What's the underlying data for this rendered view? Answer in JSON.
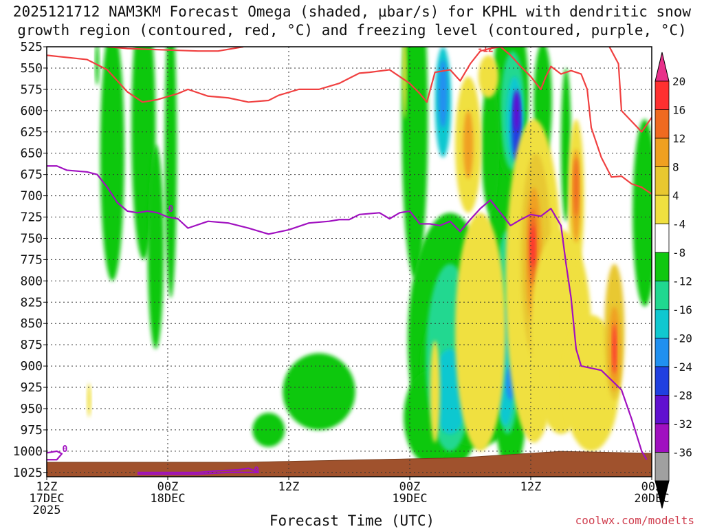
{
  "title_line1": "2025121712 NAM3KM Forecast Omega (shaded, μbar/s) for KPHL with dendritic snow",
  "title_line2": "growth region (contoured, red, °C) and freezing level (contoured, purple, °C)",
  "credit": "coolwx.com/modelts",
  "chart_data": {
    "type": "heatmap",
    "xlabel": "Forecast Time (UTC)",
    "x_ticks": [
      {
        "hour": 0,
        "lines": [
          "12Z",
          "17DEC",
          "2025"
        ]
      },
      {
        "hour": 12,
        "lines": [
          "00Z",
          "18DEC"
        ]
      },
      {
        "hour": 24,
        "lines": [
          "12Z"
        ]
      },
      {
        "hour": 36,
        "lines": [
          "00Z",
          "19DEC"
        ]
      },
      {
        "hour": 48,
        "lines": [
          "12Z"
        ]
      },
      {
        "hour": 60,
        "lines": [
          "00Z",
          "20DEC"
        ]
      }
    ],
    "x_range": [
      0,
      60
    ],
    "y_ticks": [
      525,
      550,
      575,
      600,
      625,
      650,
      675,
      700,
      725,
      750,
      775,
      800,
      825,
      850,
      875,
      900,
      925,
      950,
      975,
      1000,
      1025
    ],
    "y_range": [
      525,
      1030
    ],
    "grid": true,
    "colorbar": {
      "labels": [
        20,
        16,
        12,
        8,
        4,
        -4,
        -8,
        -12,
        -16,
        -20,
        -24,
        -28,
        -32,
        -36
      ],
      "colors": [
        "#e8308a",
        "#ff3030",
        "#f06a20",
        "#f0a020",
        "#e8c830",
        "#f0e040",
        "#ffffff",
        "#10c810",
        "#20d890",
        "#10c8d0",
        "#2090f0",
        "#2040e0",
        "#6010d0",
        "#a010c0",
        "#a0a0a0",
        "#000000"
      ]
    },
    "series": [
      {
        "name": "-12",
        "color": "#f04040",
        "points": [
          [
            0,
            535
          ],
          [
            4,
            540
          ],
          [
            6,
            552
          ],
          [
            8,
            578
          ],
          [
            9.5,
            590
          ],
          [
            11,
            587
          ],
          [
            13,
            580
          ],
          [
            14,
            575
          ],
          [
            16,
            583
          ],
          [
            18,
            585
          ],
          [
            20,
            590
          ],
          [
            22,
            588
          ],
          [
            23,
            582
          ],
          [
            25,
            575
          ],
          [
            27,
            575
          ],
          [
            29,
            568
          ],
          [
            31,
            556
          ],
          [
            32,
            555
          ],
          [
            34,
            552
          ],
          [
            35,
            560
          ],
          [
            36,
            568
          ],
          [
            37,
            580
          ],
          [
            37.7,
            590
          ],
          [
            38.5,
            555
          ],
          [
            40,
            552
          ],
          [
            41,
            565
          ],
          [
            42,
            545
          ],
          [
            43,
            530
          ],
          [
            44,
            527
          ],
          [
            45,
            525
          ],
          [
            46,
            535
          ],
          [
            47,
            548
          ],
          [
            48,
            560
          ],
          [
            49,
            575
          ],
          [
            49.5,
            560
          ],
          [
            50,
            548
          ],
          [
            51,
            557
          ],
          [
            52,
            553
          ],
          [
            53,
            557
          ],
          [
            53.6,
            575
          ],
          [
            54,
            620
          ],
          [
            55,
            655
          ],
          [
            56,
            678
          ],
          [
            57,
            677
          ],
          [
            58,
            686
          ],
          [
            59,
            690
          ],
          [
            60,
            698
          ]
        ]
      },
      {
        "name": "-12",
        "color": "#f04040",
        "points": [
          [
            55.8,
            525
          ],
          [
            56.7,
            545
          ],
          [
            57,
            600
          ],
          [
            57.8,
            610
          ],
          [
            59,
            625
          ],
          [
            60,
            608
          ]
        ]
      },
      {
        "name": "-12",
        "color": "#f04040",
        "points": [
          [
            6,
            525
          ],
          [
            8,
            527
          ],
          [
            10,
            528
          ],
          [
            15,
            530
          ],
          [
            17,
            530
          ],
          [
            19.5,
            525
          ]
        ]
      },
      {
        "name": "0",
        "color": "#a010c0",
        "points": [
          [
            0,
            665
          ],
          [
            1,
            665
          ],
          [
            2,
            670
          ],
          [
            4,
            672
          ],
          [
            5,
            675
          ],
          [
            6,
            690
          ],
          [
            7,
            708
          ],
          [
            8,
            718
          ],
          [
            9,
            720
          ],
          [
            10,
            718
          ],
          [
            11,
            720
          ],
          [
            12,
            725
          ],
          [
            13,
            727
          ],
          [
            14,
            738
          ],
          [
            16,
            730
          ],
          [
            18,
            732
          ],
          [
            20,
            738
          ],
          [
            22,
            745
          ],
          [
            24,
            740
          ],
          [
            26,
            732
          ],
          [
            28,
            730
          ],
          [
            29,
            728
          ],
          [
            30,
            728
          ],
          [
            31,
            722
          ],
          [
            33,
            720
          ],
          [
            34,
            727
          ],
          [
            35,
            720
          ],
          [
            36,
            718
          ],
          [
            37,
            733
          ],
          [
            38,
            733
          ],
          [
            39,
            735
          ],
          [
            40,
            730
          ],
          [
            41,
            742
          ],
          [
            42,
            728
          ],
          [
            43,
            715
          ],
          [
            44,
            705
          ],
          [
            45,
            720
          ],
          [
            46,
            735
          ],
          [
            47,
            728
          ],
          [
            48,
            722
          ],
          [
            49,
            724
          ],
          [
            50,
            715
          ],
          [
            51,
            735
          ],
          [
            51.5,
            780
          ],
          [
            52,
            820
          ],
          [
            52.5,
            880
          ],
          [
            53,
            900
          ],
          [
            55,
            905
          ],
          [
            57,
            928
          ],
          [
            58,
            962
          ],
          [
            59,
            1000
          ],
          [
            59.5,
            1010
          ]
        ]
      },
      {
        "name": "0",
        "color": "#a010c0",
        "points": [
          [
            9,
            1025
          ],
          [
            12,
            1025
          ],
          [
            15,
            1025
          ],
          [
            17,
            1023
          ],
          [
            19,
            1022
          ],
          [
            20,
            1020
          ],
          [
            21,
            1025
          ],
          [
            18,
            1025
          ],
          [
            15,
            1027
          ],
          [
            12,
            1027
          ],
          [
            9,
            1027
          ]
        ]
      },
      {
        "name": "0",
        "color": "#a010c0",
        "points": [
          [
            0,
            1002
          ],
          [
            1,
            1000
          ],
          [
            1.5,
            1003
          ],
          [
            1,
            1010
          ],
          [
            0,
            1010
          ]
        ]
      }
    ]
  }
}
